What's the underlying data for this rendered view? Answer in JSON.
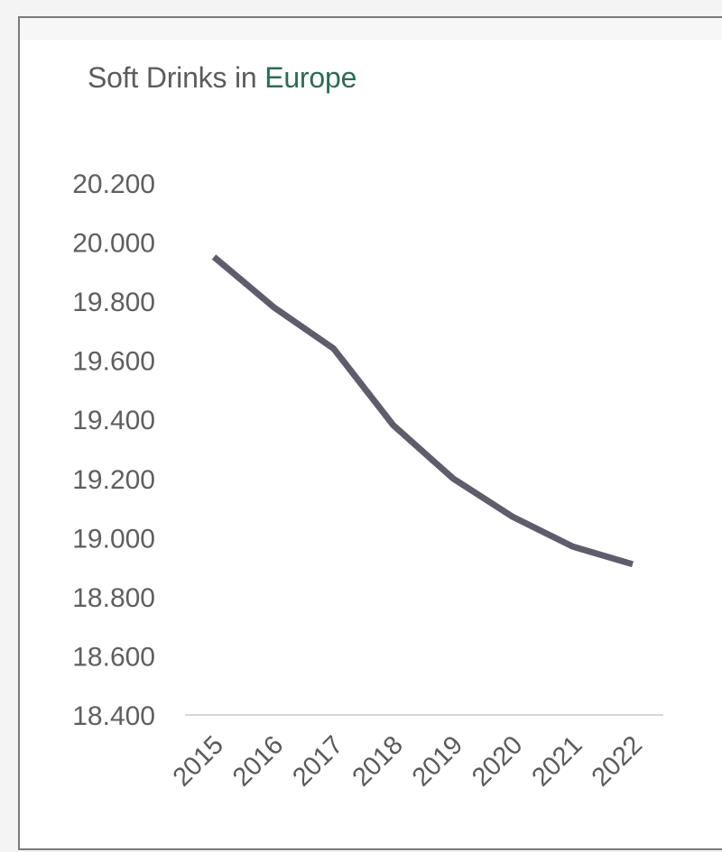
{
  "card": {
    "title_prefix": "Soft Drinks in",
    "title_accent": "Europe"
  },
  "colors": {
    "line": "#5f5d6c",
    "accent": "#2f6b55",
    "axis": "#d6d6d6",
    "text": "#5f5f5f"
  },
  "chart_data": {
    "type": "line",
    "title": "Soft Drinks in Europe",
    "xlabel": "",
    "ylabel": "",
    "x": [
      "2015",
      "2016",
      "2017",
      "2018",
      "2019",
      "2020",
      "2021",
      "2022"
    ],
    "series": [
      {
        "values": [
          19950,
          19780,
          19640,
          19380,
          19200,
          19070,
          18970,
          18910
        ]
      }
    ],
    "ylim": [
      18400,
      20200
    ],
    "yticks": [
      20200,
      20000,
      19800,
      19600,
      19400,
      19200,
      19000,
      18800,
      18600,
      18400
    ],
    "ytick_labels": [
      "20.200",
      "20.000",
      "19.800",
      "19.600",
      "19.400",
      "19.200",
      "19.000",
      "18.800",
      "18.600",
      "18.400"
    ],
    "grid": false,
    "legend": "none"
  }
}
